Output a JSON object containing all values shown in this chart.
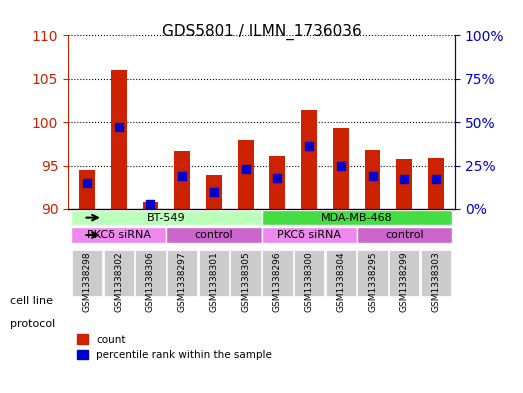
{
  "title": "GDS5801 / ILMN_1736036",
  "samples": [
    "GSM1338298",
    "GSM1338302",
    "GSM1338306",
    "GSM1338297",
    "GSM1338301",
    "GSM1338305",
    "GSM1338296",
    "GSM1338300",
    "GSM1338304",
    "GSM1338295",
    "GSM1338299",
    "GSM1338303"
  ],
  "count_values": [
    94.5,
    106.0,
    90.8,
    96.7,
    93.9,
    98.0,
    96.1,
    101.4,
    99.3,
    96.8,
    95.8,
    95.9
  ],
  "percentile_values": [
    15,
    47,
    3,
    19,
    10,
    23,
    18,
    36,
    25,
    19,
    17,
    17
  ],
  "ylim_left": [
    90,
    110
  ],
  "ylim_right": [
    0,
    100
  ],
  "yticks_left": [
    90,
    95,
    100,
    105,
    110
  ],
  "yticks_right": [
    0,
    25,
    50,
    75,
    100
  ],
  "bar_color": "#cc2200",
  "dot_color": "#0000cc",
  "bg_color": "#ffffff",
  "plot_bg": "#ffffff",
  "grid_color": "#000000",
  "cell_line_groups": [
    {
      "label": "BT-549",
      "start": 0,
      "end": 6,
      "color": "#aaffaa"
    },
    {
      "label": "MDA-MB-468",
      "start": 6,
      "end": 12,
      "color": "#44ee44"
    }
  ],
  "protocol_groups": [
    {
      "label": "PKCδ siRNA",
      "start": 0,
      "end": 3,
      "color": "#ee88ee"
    },
    {
      "label": "control",
      "start": 3,
      "end": 6,
      "color": "#ee88ee"
    },
    {
      "label": "PKCδ siRNA",
      "start": 6,
      "end": 9,
      "color": "#ee88ee"
    },
    {
      "label": "control",
      "start": 9,
      "end": 12,
      "color": "#ee88ee"
    }
  ],
  "protocol_colors": [
    "#ee88ee",
    "#ddaadd",
    "#ee88ee",
    "#ddaadd"
  ],
  "tick_label_color": "#000000",
  "left_axis_color": "#cc2200",
  "right_axis_color": "#0000cc",
  "bar_width": 0.5,
  "dot_size": 40
}
